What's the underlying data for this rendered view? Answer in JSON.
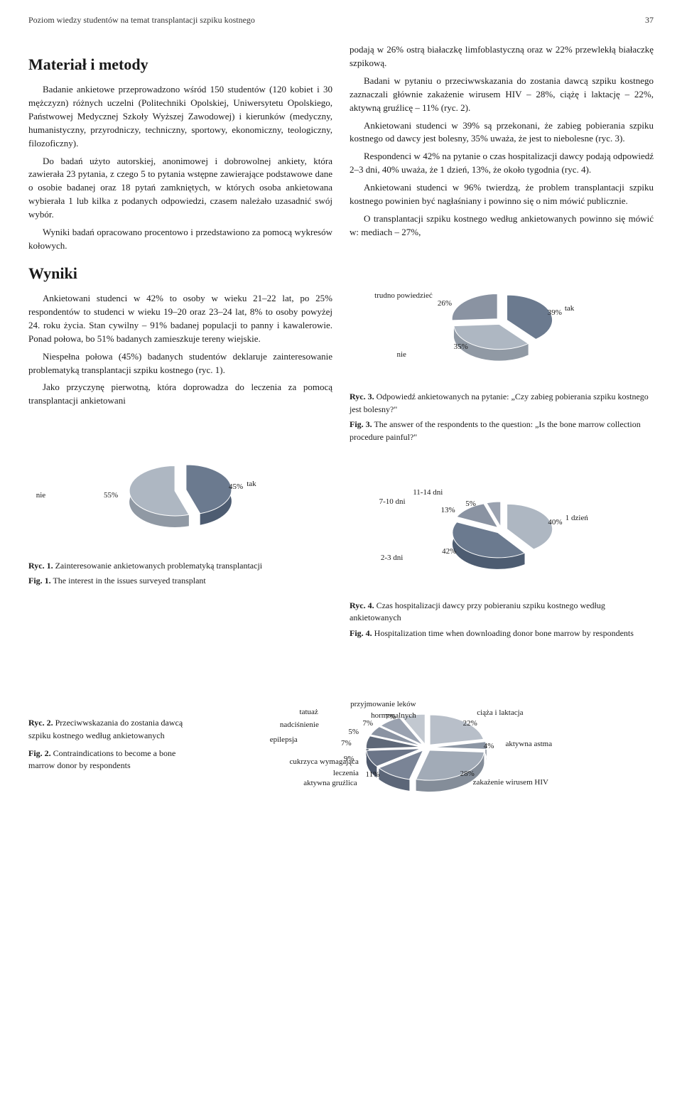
{
  "running_head": {
    "title": "Poziom wiedzy studentów na temat transplantacji szpiku kostnego",
    "page": "37"
  },
  "left": {
    "h_material": "Materiał i metody",
    "p1": "Badanie ankietowe przeprowadzono wśród 150 studentów (120 kobiet i 30 mężczyzn) różnych uczelni (Politechniki Opolskiej, Uniwersytetu Opolskiego, Państwowej Medycznej Szkoły Wyższej Zawodowej) i kierunków (medyczny, humanistyczny, przyrodniczy, techniczny, sportowy, ekonomiczny, teologiczny, filozoficzny).",
    "p2": "Do badań użyto autorskiej, anonimowej i dobrowolnej ankiety, która zawierała 23 pytania, z czego 5 to pytania wstępne zawierające podstawowe dane o osobie badanej oraz 18 pytań zamkniętych, w których osoba ankietowana wybierała 1 lub kilka z podanych odpowiedzi, czasem należało uzasadnić swój wybór.",
    "p3": "Wyniki badań opracowano procentowo i przedstawiono za pomocą wykresów kołowych.",
    "h_wyniki": "Wyniki",
    "p4": "Ankietowani studenci w 42% to osoby w wieku 21–22 lat, po 25% respondentów to studenci w wieku 19–20 oraz 23–24 lat, 8% to osoby powyżej 24. roku życia. Stan cywilny – 91% badanej populacji to panny i kawalerowie. Ponad połowa, bo 51% badanych zamieszkuje tereny wiejskie.",
    "p5": "Niespełna połowa (45%) badanych studentów deklaruje zainteresowanie problematyką transplantacji szpiku kostnego (ryc. 1).",
    "p6": "Jako przyczynę pierwotną, która doprowadza do leczenia za pomocą transplantacji ankietowani"
  },
  "right": {
    "p1": "podają w 26% ostrą białaczkę limfoblastyczną oraz w 22% przewlekłą białaczkę szpikową.",
    "p2": "Badani w pytaniu o przeciwwskazania do zostania dawcą szpiku kostnego zaznaczali głównie zakażenie wirusem HIV – 28%, ciążę i laktację – 22%, aktywną gruźlicę – 11% (ryc. 2).",
    "p3": "Ankietowani studenci w 39% są przekonani, że zabieg pobierania szpiku kostnego od dawcy jest bolesny, 35% uważa, że jest to niebolesne (ryc. 3).",
    "p4": "Respondenci w 42% na pytanie o czas hospitalizacji dawcy podają odpowiedź 2–3 dni, 40% uważa, że 1 dzień, 13%, że około tygodnia (ryc. 4).",
    "p5": "Ankietowani studenci w 96% twierdzą, że problem transplantacji szpiku kostnego powinien być nagłaśniany i powinno się o nim mówić publicznie.",
    "p6": "O transplantacji szpiku kostnego według ankietowanych powinno się mówić w: mediach – 27%,"
  },
  "fig1": {
    "type": "pie",
    "pl": "Ryc. 1. Zainteresowanie ankietowanych problematyką transplantacji",
    "en": "Fig. 1. The interest in the issues surveyed transplant",
    "slices": [
      {
        "label": "tak",
        "value": 45,
        "color": "#6b7a8f"
      },
      {
        "label": "nie",
        "value": 55,
        "color": "#aeb7c2"
      }
    ],
    "bg": "#ffffff"
  },
  "fig2": {
    "type": "pie",
    "pl": "Ryc. 2. Przeciwwskazania do zostania dawcą szpiku kostnego według ankietowanych",
    "en": "Fig. 2. Contraindications to become a bone marrow donor by respondents",
    "slices": [
      {
        "label": "ciąża i laktacja",
        "value": 22,
        "color": "#b8bfc9"
      },
      {
        "label": "aktywna astma",
        "value": 4,
        "color": "#8c96a4"
      },
      {
        "label": "zakażenie wirusem HIV",
        "value": 28,
        "color": "#a2abb7"
      },
      {
        "label": "aktywna gruźlica",
        "value": 11,
        "color": "#7a8496"
      },
      {
        "label": "cukrzyca wymagająca leczenia",
        "value": 9,
        "color": "#6b7588"
      },
      {
        "label": "epilepsja",
        "value": 7,
        "color": "#5e6878"
      },
      {
        "label": "nadciśnienie",
        "value": 5,
        "color": "#8a93a2"
      },
      {
        "label": "tatuaż",
        "value": 7,
        "color": "#9aa2b0"
      },
      {
        "label": "przyjmowanie leków hormonalnych",
        "value": 7,
        "color": "#c2c8d0"
      }
    ],
    "bg": "#ffffff"
  },
  "fig3": {
    "type": "pie",
    "pl": "Ryc. 3. Odpowiedź ankietowanych na pytanie: „Czy zabieg pobierania szpiku kostnego jest bolesny?\"",
    "en": "Fig. 3. The answer of the respondents to the question: „Is the bone marrow collection procedure painful?\"",
    "slices": [
      {
        "label": "tak",
        "value": 39,
        "color": "#6b7a8f"
      },
      {
        "label": "nie",
        "value": 35,
        "color": "#aeb7c2"
      },
      {
        "label": "trudno powiedzieć",
        "value": 26,
        "color": "#8a93a2"
      }
    ],
    "bg": "#ffffff"
  },
  "fig4": {
    "type": "pie",
    "pl": "Ryc. 4. Czas hospitalizacji dawcy przy pobieraniu szpiku kostnego według ankietowanych",
    "en": "Fig. 4. Hospitalization time when downloading donor bone marrow by respondents",
    "slices": [
      {
        "label": "1 dzień",
        "value": 40,
        "color": "#aeb7c2"
      },
      {
        "label": "2-3 dni",
        "value": 42,
        "color": "#6b7a8f"
      },
      {
        "label": "7-10 dni",
        "value": 13,
        "color": "#8a93a2"
      },
      {
        "label": "11-14 dni",
        "value": 5,
        "color": "#9aa2b0"
      }
    ],
    "bg": "#ffffff"
  },
  "vis": {
    "fontsize_label": 11,
    "fontsize_caption": 12
  }
}
